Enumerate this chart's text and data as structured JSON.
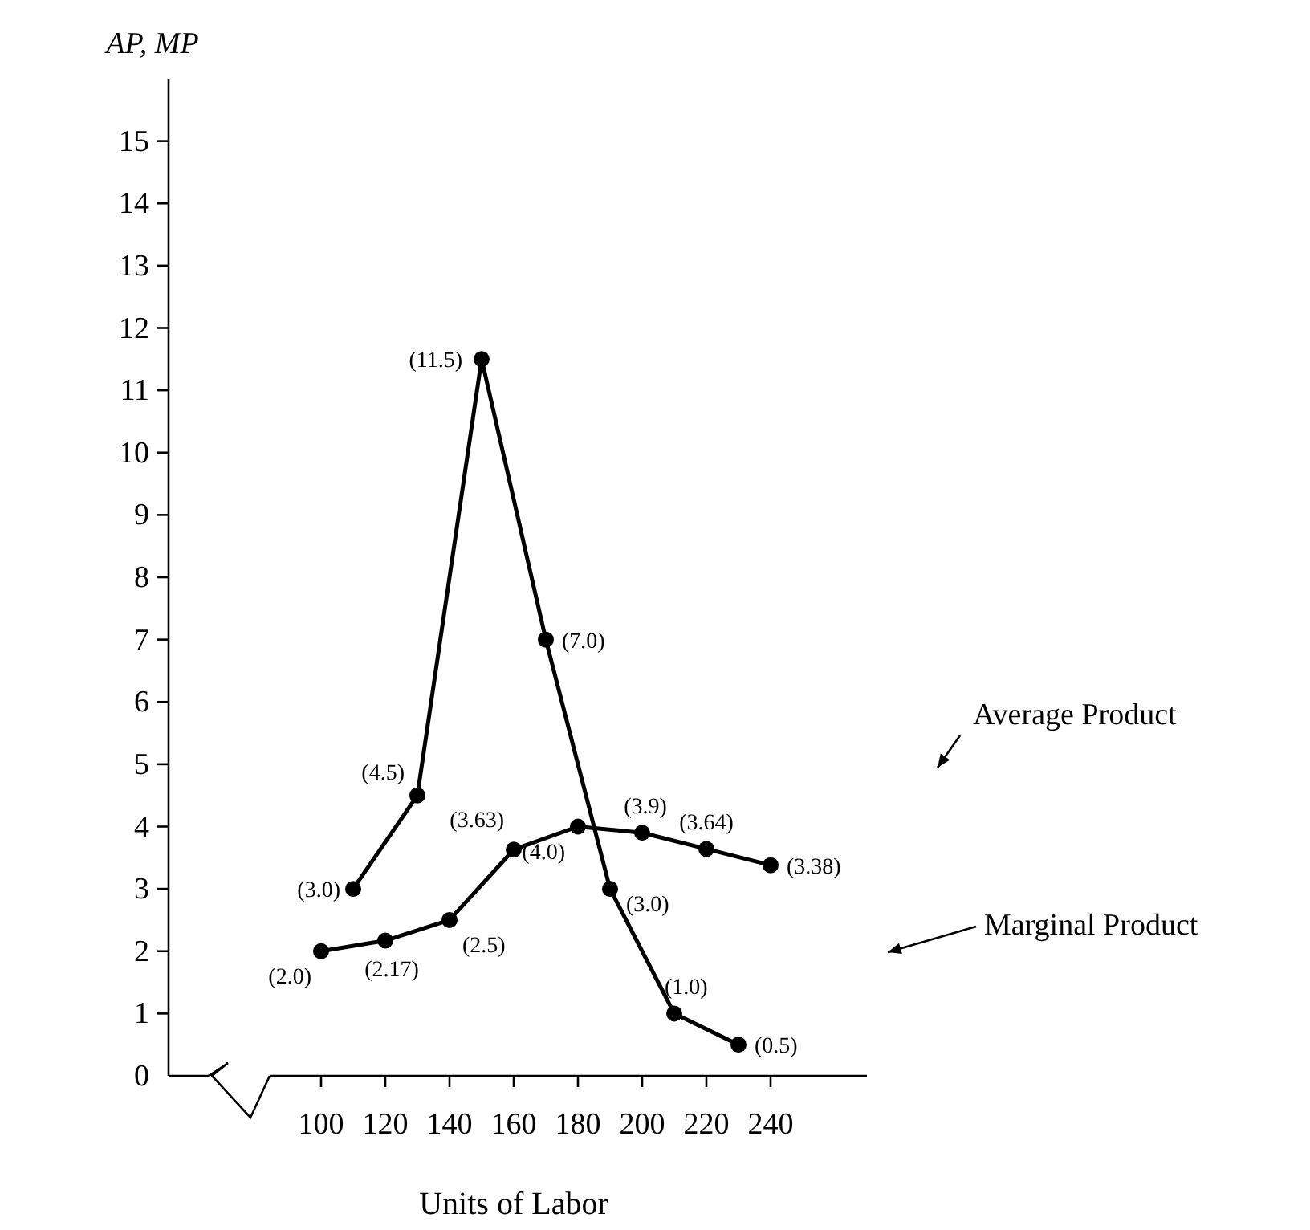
{
  "chart_data": {
    "type": "line",
    "xlabel": "Units of Labor",
    "ylabel": "AP, MP",
    "xlim": [
      52.5,
      270
    ],
    "xticks": [
      100,
      120,
      140,
      160,
      180,
      200,
      220,
      240
    ],
    "ylim": [
      0,
      16
    ],
    "yticks": [
      {
        "value": 0,
        "label": "0"
      },
      1,
      2,
      3,
      4,
      5,
      6,
      7,
      8,
      9,
      10,
      11,
      12,
      13,
      14,
      15
    ],
    "grid": false,
    "marker": "circle",
    "line_style": "solid",
    "series": [
      {
        "name": "Marginal Product",
        "color": "#000000",
        "x": [
          110,
          130,
          150,
          170,
          190,
          210,
          230
        ],
        "values": [
          3.0,
          4.5,
          11.5,
          7.0,
          3.0,
          1.0,
          0.5
        ],
        "value_labels": [
          "(3.0)",
          "(4.5)",
          "(11.5)",
          "(7.0)",
          "(3.0)",
          "(1.0)",
          "(0.5)"
        ]
      },
      {
        "name": "Average Product",
        "color": "#000000",
        "x": [
          100,
          120,
          140,
          160,
          180,
          200,
          220,
          240
        ],
        "values": [
          2.0,
          2.17,
          2.5,
          3.63,
          4.0,
          3.9,
          3.64,
          3.38
        ],
        "value_labels": [
          "(2.0)",
          "(2.17)",
          "(2.5)",
          "(3.63)",
          "(4.0)",
          "(3.9)",
          "(3.64)",
          "(3.38)"
        ]
      }
    ]
  }
}
